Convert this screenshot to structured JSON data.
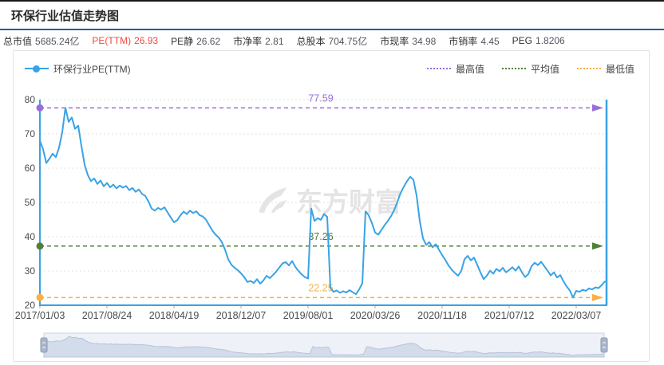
{
  "page": {
    "title": "环保行业估值走势图"
  },
  "stats": [
    {
      "label": "总市值",
      "value": "5685.24亿",
      "highlight": false
    },
    {
      "label": "PE(TTM)",
      "value": "26.93",
      "highlight": true
    },
    {
      "label": "PE静",
      "value": "26.62",
      "highlight": false
    },
    {
      "label": "市净率",
      "value": "2.81",
      "highlight": false
    },
    {
      "label": "总股本",
      "value": "704.75亿",
      "highlight": false
    },
    {
      "label": "市现率",
      "value": "34.98",
      "highlight": false
    },
    {
      "label": "市销率",
      "value": "4.45",
      "highlight": false
    },
    {
      "label": "PEG",
      "value": "1.8206",
      "highlight": false
    }
  ],
  "legend": {
    "series": "环保行业PE(TTM)",
    "max": "最高值",
    "avg": "平均值",
    "min": "最低值"
  },
  "watermark_text": "东方财富",
  "colors": {
    "series": "#38a3e6",
    "max": "#9a6ed8",
    "avg": "#4e8039",
    "min": "#f9af43",
    "highlight": "#f0483e",
    "divider": "#2b5b9e"
  },
  "chart_data": {
    "type": "line",
    "title": "环保行业估值走势图",
    "legend_position": "top",
    "grid": true,
    "x_tick_labels": [
      "2017/01/03",
      "2017/08/24",
      "2018/04/19",
      "2018/12/07",
      "2019/08/01",
      "2020/03/26",
      "2020/11/18",
      "2021/07/12",
      "2022/03/07"
    ],
    "y_ticks": [
      20,
      30,
      40,
      50,
      60,
      70,
      80
    ],
    "ylim": [
      20,
      80
    ],
    "max_value": 77.59,
    "avg_value": 37.26,
    "min_value": 22.25,
    "last_value": 26.93,
    "series": [
      {
        "name": "环保行业PE(TTM)",
        "values": [
          68.0,
          65.5,
          61.5,
          62.8,
          64.2,
          63.2,
          66.0,
          70.5,
          77.59,
          73.5,
          74.8,
          71.5,
          72.4,
          66.5,
          61.0,
          58.0,
          56.2,
          57.0,
          55.4,
          56.4,
          54.7,
          55.7,
          54.4,
          55.2,
          54.1,
          54.9,
          54.3,
          54.8,
          53.6,
          54.2,
          53.1,
          53.8,
          52.5,
          51.9,
          50.3,
          48.2,
          47.6,
          48.4,
          47.9,
          48.6,
          47.1,
          45.6,
          44.2,
          44.8,
          46.2,
          47.3,
          46.6,
          47.6,
          46.9,
          47.4,
          46.3,
          45.9,
          45.0,
          43.4,
          41.8,
          40.6,
          39.8,
          38.4,
          36.2,
          33.4,
          31.8,
          30.9,
          30.2,
          29.3,
          28.2,
          26.8,
          27.1,
          26.5,
          27.6,
          26.3,
          27.2,
          28.6,
          27.9,
          28.8,
          29.8,
          31.0,
          32.2,
          32.6,
          31.6,
          32.9,
          31.2,
          30.0,
          29.0,
          28.2,
          27.8,
          48.2,
          44.6,
          45.4,
          44.9,
          46.6,
          45.8,
          25.0,
          23.9,
          24.3,
          23.6,
          24.1,
          23.7,
          24.4,
          23.8,
          23.2,
          24.6,
          26.4,
          47.4,
          46.2,
          44.0,
          41.2,
          40.6,
          42.0,
          43.4,
          44.6,
          46.0,
          47.8,
          50.2,
          52.8,
          54.6,
          56.2,
          57.5,
          56.6,
          52.0,
          44.5,
          39.5,
          37.6,
          38.4,
          36.9,
          37.8,
          36.2,
          34.6,
          33.2,
          31.6,
          30.4,
          29.4,
          28.6,
          30.0,
          33.4,
          34.4,
          33.1,
          33.9,
          31.8,
          29.6,
          27.6,
          28.6,
          30.1,
          29.2,
          30.6,
          29.9,
          30.9,
          29.6,
          30.3,
          31.1,
          30.1,
          31.3,
          29.6,
          28.2,
          29.1,
          31.4,
          32.4,
          31.7,
          32.7,
          31.4,
          30.1,
          28.7,
          29.6,
          28.1,
          28.8,
          27.0,
          25.5,
          24.3,
          22.25,
          24.2,
          23.9,
          24.5,
          24.2,
          24.9,
          24.6,
          25.2,
          25.0,
          25.9,
          26.93
        ]
      }
    ]
  }
}
